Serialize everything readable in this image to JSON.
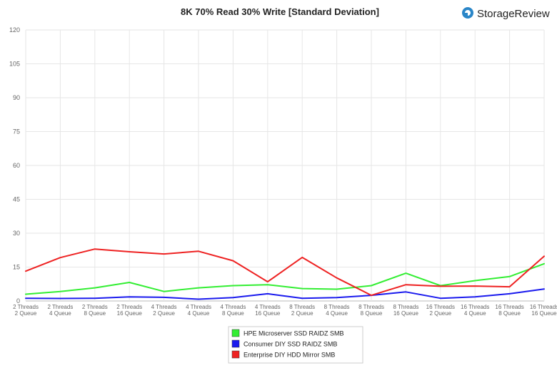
{
  "brand": {
    "name": "StorageReview",
    "logo_icon": "storagereview-logo-icon",
    "logo_color": "#2a86c8"
  },
  "chart_data": {
    "type": "line",
    "title": "8K 70% Read 30% Write [Standard Deviation]",
    "xlabel": "",
    "ylabel": "",
    "ylim": [
      0,
      120
    ],
    "yticks": [
      0,
      15,
      30,
      45,
      60,
      75,
      90,
      105,
      120
    ],
    "grid": true,
    "legend_position": "bottom-center",
    "categories": [
      [
        "2 Threads",
        "2 Queue"
      ],
      [
        "2 Threads",
        "4 Queue"
      ],
      [
        "2 Threads",
        "8 Queue"
      ],
      [
        "2 Threads",
        "16 Queue"
      ],
      [
        "4 Threads",
        "2 Queue"
      ],
      [
        "4 Threads",
        "4 Queue"
      ],
      [
        "4 Threads",
        "8 Queue"
      ],
      [
        "4 Threads",
        "16 Queue"
      ],
      [
        "8 Threads",
        "2 Queue"
      ],
      [
        "8 Threads",
        "4 Queue"
      ],
      [
        "8 Threads",
        "8 Queue"
      ],
      [
        "8 Threads",
        "16 Queue"
      ],
      [
        "16 Threads",
        "2 Queue"
      ],
      [
        "16 Threads",
        "4 Queue"
      ],
      [
        "16 Threads",
        "8 Queue"
      ],
      [
        "16 Threads",
        "16 Queue"
      ]
    ],
    "series": [
      {
        "name": "HPE Microserver SSD RAIDZ SMB",
        "color": "#33ee33",
        "values": [
          3.0,
          4.2,
          5.8,
          8.2,
          4.2,
          5.8,
          6.8,
          7.2,
          5.5,
          5.2,
          6.8,
          12.3,
          6.8,
          9.0,
          10.8,
          16.5
        ]
      },
      {
        "name": "Consumer DIY SSD RAIDZ SMB",
        "color": "#1a1aee",
        "values": [
          1.2,
          1.1,
          1.2,
          1.8,
          1.6,
          0.8,
          1.5,
          3.2,
          1.2,
          1.5,
          2.5,
          4.0,
          1.2,
          1.8,
          3.2,
          5.3
        ]
      },
      {
        "name": "Enterprise DIY HDD Mirror SMB",
        "color": "#ee2222",
        "values": [
          13.2,
          19.2,
          23.0,
          21.8,
          20.8,
          22.0,
          17.8,
          8.5,
          19.3,
          10.2,
          2.5,
          7.2,
          6.5,
          6.6,
          6.3,
          19.8
        ]
      }
    ]
  }
}
